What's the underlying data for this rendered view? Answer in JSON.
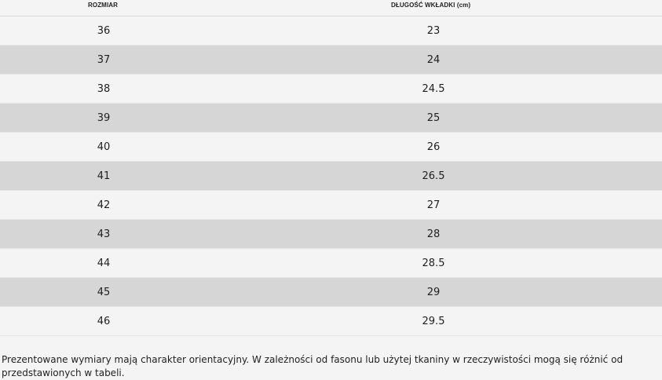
{
  "table": {
    "headers": {
      "size": "ROZMIAR",
      "length": "DŁUGOŚĆ WKŁADKI (cm)"
    },
    "rows": [
      {
        "size": "36",
        "length": "23"
      },
      {
        "size": "37",
        "length": "24"
      },
      {
        "size": "38",
        "length": "24.5"
      },
      {
        "size": "39",
        "length": "25"
      },
      {
        "size": "40",
        "length": "26"
      },
      {
        "size": "41",
        "length": "26.5"
      },
      {
        "size": "42",
        "length": "27"
      },
      {
        "size": "43",
        "length": "28"
      },
      {
        "size": "44",
        "length": "28.5"
      },
      {
        "size": "45",
        "length": "29"
      },
      {
        "size": "46",
        "length": "29.5"
      }
    ]
  },
  "note": "Prezentowane wymiary mają charakter orientacyjny. W zależności od fasonu lub użytej tkaniny w rzeczywistości mogą się różnić od przedstawionych w tabeli.",
  "colors": {
    "background": "#f4f4f4",
    "stripe": "#d6d6d6",
    "text": "#1f1f1f"
  }
}
